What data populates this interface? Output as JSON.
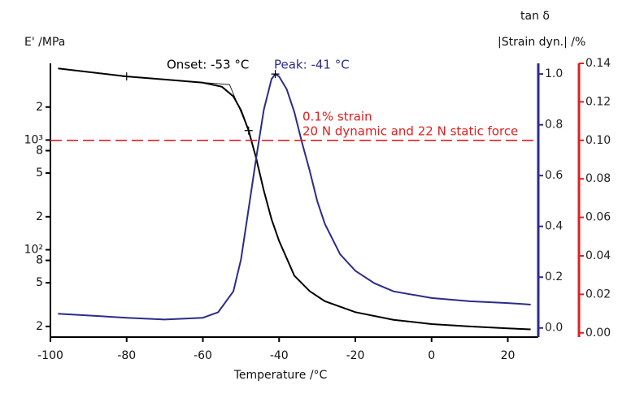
{
  "chart_data": {
    "type": "line",
    "xlabel": "Temperature /°C",
    "ylabel": "E' /MPa",
    "y2label": "tan δ",
    "y3label": "|Strain dyn.| /%",
    "xlim": [
      -100,
      28
    ],
    "xticks": [
      -100,
      -80,
      -60,
      -40,
      -20,
      0,
      20
    ],
    "ylim": [
      16,
      5000
    ],
    "ylog": true,
    "yticks": [
      20,
      50,
      80,
      {
        "value": 100,
        "label": "10²"
      },
      {
        "value": 200,
        "label": "2"
      },
      {
        "value": 500,
        "label": "5"
      },
      {
        "value": 800,
        "label": "8"
      },
      {
        "value": 1000,
        "label": "10³"
      },
      {
        "value": 2000,
        "label": "2"
      }
    ],
    "ytick_labels_short": [
      "2",
      "5",
      "8"
    ],
    "y2lim": [
      -0.036,
      1.042
    ],
    "y2ticks": [
      {
        "value": 0,
        "label": "0.0"
      },
      0.2,
      0.4,
      0.6,
      0.8,
      {
        "value": 1,
        "label": "1.0"
      }
    ],
    "y2color": "#2b2b8c",
    "y3lim": [
      -0.0022,
      0.14
    ],
    "y3ticks": [
      {
        "value": 0,
        "label": "0.00"
      },
      {
        "value": 0.02,
        "label": "0.02"
      },
      {
        "value": 0.04,
        "label": "0.04"
      },
      {
        "value": 0.06,
        "label": "0.06"
      },
      {
        "value": 0.08,
        "label": "0.08"
      },
      {
        "value": 0.1,
        "label": "0.10"
      },
      {
        "value": 0.12,
        "label": "0.12"
      },
      {
        "value": 0.14,
        "label": "0.14"
      }
    ],
    "y3color": "#e02020",
    "series": [
      {
        "name": "E'",
        "color": "#000000",
        "axis": "y",
        "x": [
          -98,
          -80,
          -70,
          -60,
          -55,
          -52,
          -50,
          -48,
          -46,
          -44,
          -42,
          -40,
          -36,
          -32,
          -28,
          -20,
          -10,
          0,
          10,
          20,
          26
        ],
        "values": [
          4500,
          3800,
          3560,
          3330,
          3060,
          2500,
          1870,
          1220,
          680,
          345,
          190,
          120,
          58,
          42,
          34,
          27,
          23,
          21,
          20,
          19.2,
          18.8
        ]
      },
      {
        "name": "tan δ",
        "color": "#2b2b8c",
        "axis": "y2",
        "x": [
          -98,
          -80,
          -70,
          -60,
          -56,
          -52,
          -50,
          -48,
          -46,
          -44,
          -42,
          -41,
          -40,
          -38,
          -36,
          -34,
          -32,
          -30,
          -28,
          -24,
          -20,
          -15,
          -10,
          0,
          10,
          20,
          26
        ],
        "values": [
          0.056,
          0.04,
          0.033,
          0.04,
          0.062,
          0.144,
          0.27,
          0.47,
          0.67,
          0.86,
          0.98,
          1.0,
          0.99,
          0.94,
          0.85,
          0.73,
          0.62,
          0.5,
          0.41,
          0.29,
          0.225,
          0.176,
          0.144,
          0.118,
          0.105,
          0.098,
          0.092
        ]
      },
      {
        "name": "|Strain dyn.|",
        "color": "#e02020",
        "axis": "y3",
        "dashed": true,
        "x": [
          -100,
          28
        ],
        "values": [
          0.1,
          0.1
        ]
      }
    ],
    "onset_construction": {
      "x": [
        -80,
        -53,
        -48
      ],
      "values": [
        3800,
        3200,
        1220
      ]
    },
    "peak_marker": {
      "x": -41,
      "value": 1.0
    },
    "annotations": [
      {
        "text": "Onset: -53 °C",
        "color": "#000000"
      },
      {
        "text": "Peak: -41 °C",
        "color": "#2b2b8c"
      },
      {
        "text": "0.1% strain",
        "color": "#e02020"
      },
      {
        "text": "20 N dynamic and 22 N static force",
        "color": "#e02020"
      }
    ]
  }
}
